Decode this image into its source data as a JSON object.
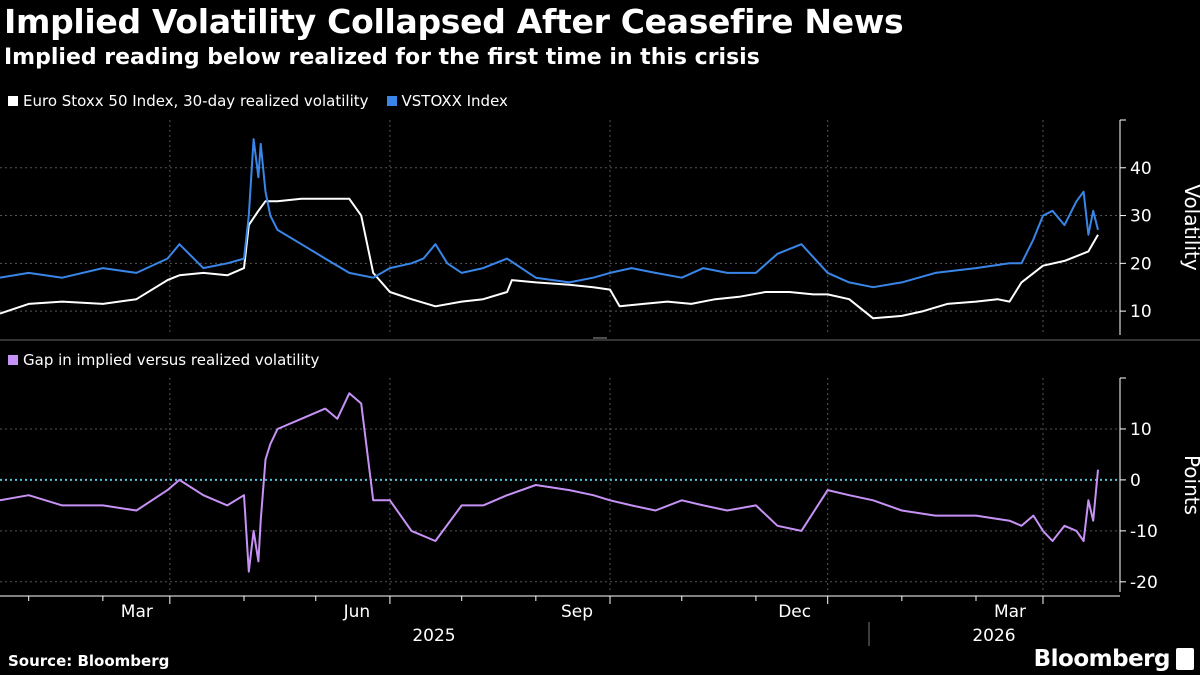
{
  "header": {
    "title": "Implied Volatility Collapsed After Ceasefire News",
    "subtitle": "Implied reading below realized for the first time in this crisis"
  },
  "footer": {
    "source": "Source: Bloomberg",
    "brand": "Bloomberg"
  },
  "colors": {
    "realized": "#ffffff",
    "implied": "#3a86e8",
    "gap": "#c792f5",
    "zero_line": "#4fc3d8",
    "grid": "#555555"
  },
  "chart_data": [
    {
      "type": "line",
      "legend_placement": "top-left",
      "ylabel": "Volatility",
      "y_axis_side": "right",
      "ylim": [
        5,
        50
      ],
      "yticks": [
        10,
        20,
        30,
        40
      ],
      "grid": true,
      "x_tick_labels": [
        "Mar",
        "Jun",
        "Sep",
        "Dec",
        "Mar"
      ],
      "x_year_labels": [
        "2025",
        "2026"
      ],
      "series": [
        {
          "name": "Euro Stoxx 50 Index, 30-day realized volatility",
          "key": "realized",
          "x": [
            "2024-12-20",
            "2025-01-01",
            "2025-01-15",
            "2025-02-01",
            "2025-02-15",
            "2025-02-28",
            "2025-03-05",
            "2025-03-15",
            "2025-03-25",
            "2025-04-01",
            "2025-04-03",
            "2025-04-07",
            "2025-04-10",
            "2025-04-15",
            "2025-04-25",
            "2025-05-05",
            "2025-05-15",
            "2025-05-20",
            "2025-05-25",
            "2025-06-01",
            "2025-06-10",
            "2025-06-20",
            "2025-07-01",
            "2025-07-10",
            "2025-07-20",
            "2025-07-22",
            "2025-08-01",
            "2025-08-15",
            "2025-08-25",
            "2025-09-01",
            "2025-09-05",
            "2025-09-15",
            "2025-09-25",
            "2025-10-05",
            "2025-10-15",
            "2025-10-25",
            "2025-11-05",
            "2025-11-15",
            "2025-11-25",
            "2025-12-01",
            "2025-12-10",
            "2025-12-20",
            "2026-01-01",
            "2026-01-10",
            "2026-01-20",
            "2026-02-01",
            "2026-02-10",
            "2026-02-15",
            "2026-02-20",
            "2026-03-01",
            "2026-03-10",
            "2026-03-15",
            "2026-03-20",
            "2026-03-24"
          ],
          "values": [
            9.5,
            11.5,
            12,
            11.5,
            12.5,
            16.5,
            17.5,
            18,
            17.5,
            19,
            28,
            31,
            33,
            33,
            33.5,
            33.5,
            33.5,
            30,
            18,
            14,
            12.5,
            11,
            12,
            12.5,
            14,
            16.5,
            16,
            15.5,
            15,
            14.5,
            11,
            11.5,
            12,
            11.5,
            12.5,
            13,
            14,
            14,
            13.5,
            13.5,
            12.5,
            8.5,
            9,
            10,
            11.5,
            12,
            12.5,
            12,
            16,
            19.5,
            20.5,
            21.5,
            22.5,
            26
          ]
        },
        {
          "name": "VSTOXX Index",
          "key": "implied",
          "x": [
            "2024-12-20",
            "2025-01-01",
            "2025-01-15",
            "2025-02-01",
            "2025-02-15",
            "2025-02-28",
            "2025-03-05",
            "2025-03-15",
            "2025-03-25",
            "2025-04-01",
            "2025-04-03",
            "2025-04-05",
            "2025-04-07",
            "2025-04-08",
            "2025-04-10",
            "2025-04-12",
            "2025-04-15",
            "2025-04-25",
            "2025-05-05",
            "2025-05-15",
            "2025-05-25",
            "2025-06-01",
            "2025-06-10",
            "2025-06-15",
            "2025-06-20",
            "2025-06-25",
            "2025-07-01",
            "2025-07-10",
            "2025-07-20",
            "2025-08-01",
            "2025-08-15",
            "2025-08-25",
            "2025-09-01",
            "2025-09-10",
            "2025-09-20",
            "2025-10-01",
            "2025-10-10",
            "2025-10-20",
            "2025-11-01",
            "2025-11-10",
            "2025-11-20",
            "2025-12-01",
            "2025-12-10",
            "2025-12-20",
            "2026-01-01",
            "2026-01-15",
            "2026-02-01",
            "2026-02-15",
            "2026-02-20",
            "2026-02-25",
            "2026-03-01",
            "2026-03-05",
            "2026-03-10",
            "2026-03-15",
            "2026-03-18",
            "2026-03-20",
            "2026-03-22",
            "2026-03-24"
          ],
          "values": [
            17,
            18,
            17,
            19,
            18,
            21,
            24,
            19,
            20,
            21,
            30,
            46,
            38,
            45,
            35,
            30,
            27,
            24,
            21,
            18,
            17,
            19,
            20,
            21,
            24,
            20,
            18,
            19,
            21,
            17,
            16,
            17,
            18,
            19,
            18,
            17,
            19,
            18,
            18,
            22,
            24,
            18,
            16,
            15,
            16,
            18,
            19,
            20,
            20,
            25,
            30,
            31,
            28,
            33,
            35,
            26,
            31,
            27
          ]
        }
      ]
    },
    {
      "type": "line",
      "legend_placement": "top-left",
      "ylabel": "Points",
      "y_axis_side": "right",
      "ylim": [
        -22,
        20
      ],
      "yticks": [
        -20,
        -10,
        0,
        10
      ],
      "grid": true,
      "reference_line": 0,
      "series": [
        {
          "name": "Gap in implied versus realized volatility",
          "key": "gap",
          "x": [
            "2024-12-20",
            "2025-01-01",
            "2025-01-15",
            "2025-02-01",
            "2025-02-15",
            "2025-02-28",
            "2025-03-05",
            "2025-03-15",
            "2025-03-25",
            "2025-04-01",
            "2025-04-03",
            "2025-04-05",
            "2025-04-07",
            "2025-04-08",
            "2025-04-10",
            "2025-04-12",
            "2025-04-15",
            "2025-04-25",
            "2025-05-05",
            "2025-05-10",
            "2025-05-15",
            "2025-05-20",
            "2025-05-25",
            "2025-06-01",
            "2025-06-10",
            "2025-06-20",
            "2025-07-01",
            "2025-07-10",
            "2025-07-20",
            "2025-08-01",
            "2025-08-15",
            "2025-08-25",
            "2025-09-01",
            "2025-09-10",
            "2025-09-20",
            "2025-10-01",
            "2025-10-10",
            "2025-10-20",
            "2025-11-01",
            "2025-11-10",
            "2025-11-20",
            "2025-12-01",
            "2025-12-10",
            "2025-12-20",
            "2026-01-01",
            "2026-01-15",
            "2026-02-01",
            "2026-02-15",
            "2026-02-20",
            "2026-02-25",
            "2026-03-01",
            "2026-03-05",
            "2026-03-10",
            "2026-03-15",
            "2026-03-18",
            "2026-03-20",
            "2026-03-22",
            "2026-03-24"
          ],
          "values": [
            -4,
            -3,
            -5,
            -5,
            -6,
            -2,
            0,
            -3,
            -5,
            -3,
            -18,
            -10,
            -16,
            -8,
            4,
            7,
            10,
            12,
            14,
            12,
            17,
            15,
            -4,
            -4,
            -10,
            -12,
            -5,
            -5,
            -3,
            -1,
            -2,
            -3,
            -4,
            -5,
            -6,
            -4,
            -5,
            -6,
            -5,
            -9,
            -10,
            -2,
            -3,
            -4,
            -6,
            -7,
            -7,
            -8,
            -9,
            -7,
            -10,
            -12,
            -9,
            -10,
            -12,
            -4,
            -8,
            2
          ]
        }
      ]
    }
  ]
}
